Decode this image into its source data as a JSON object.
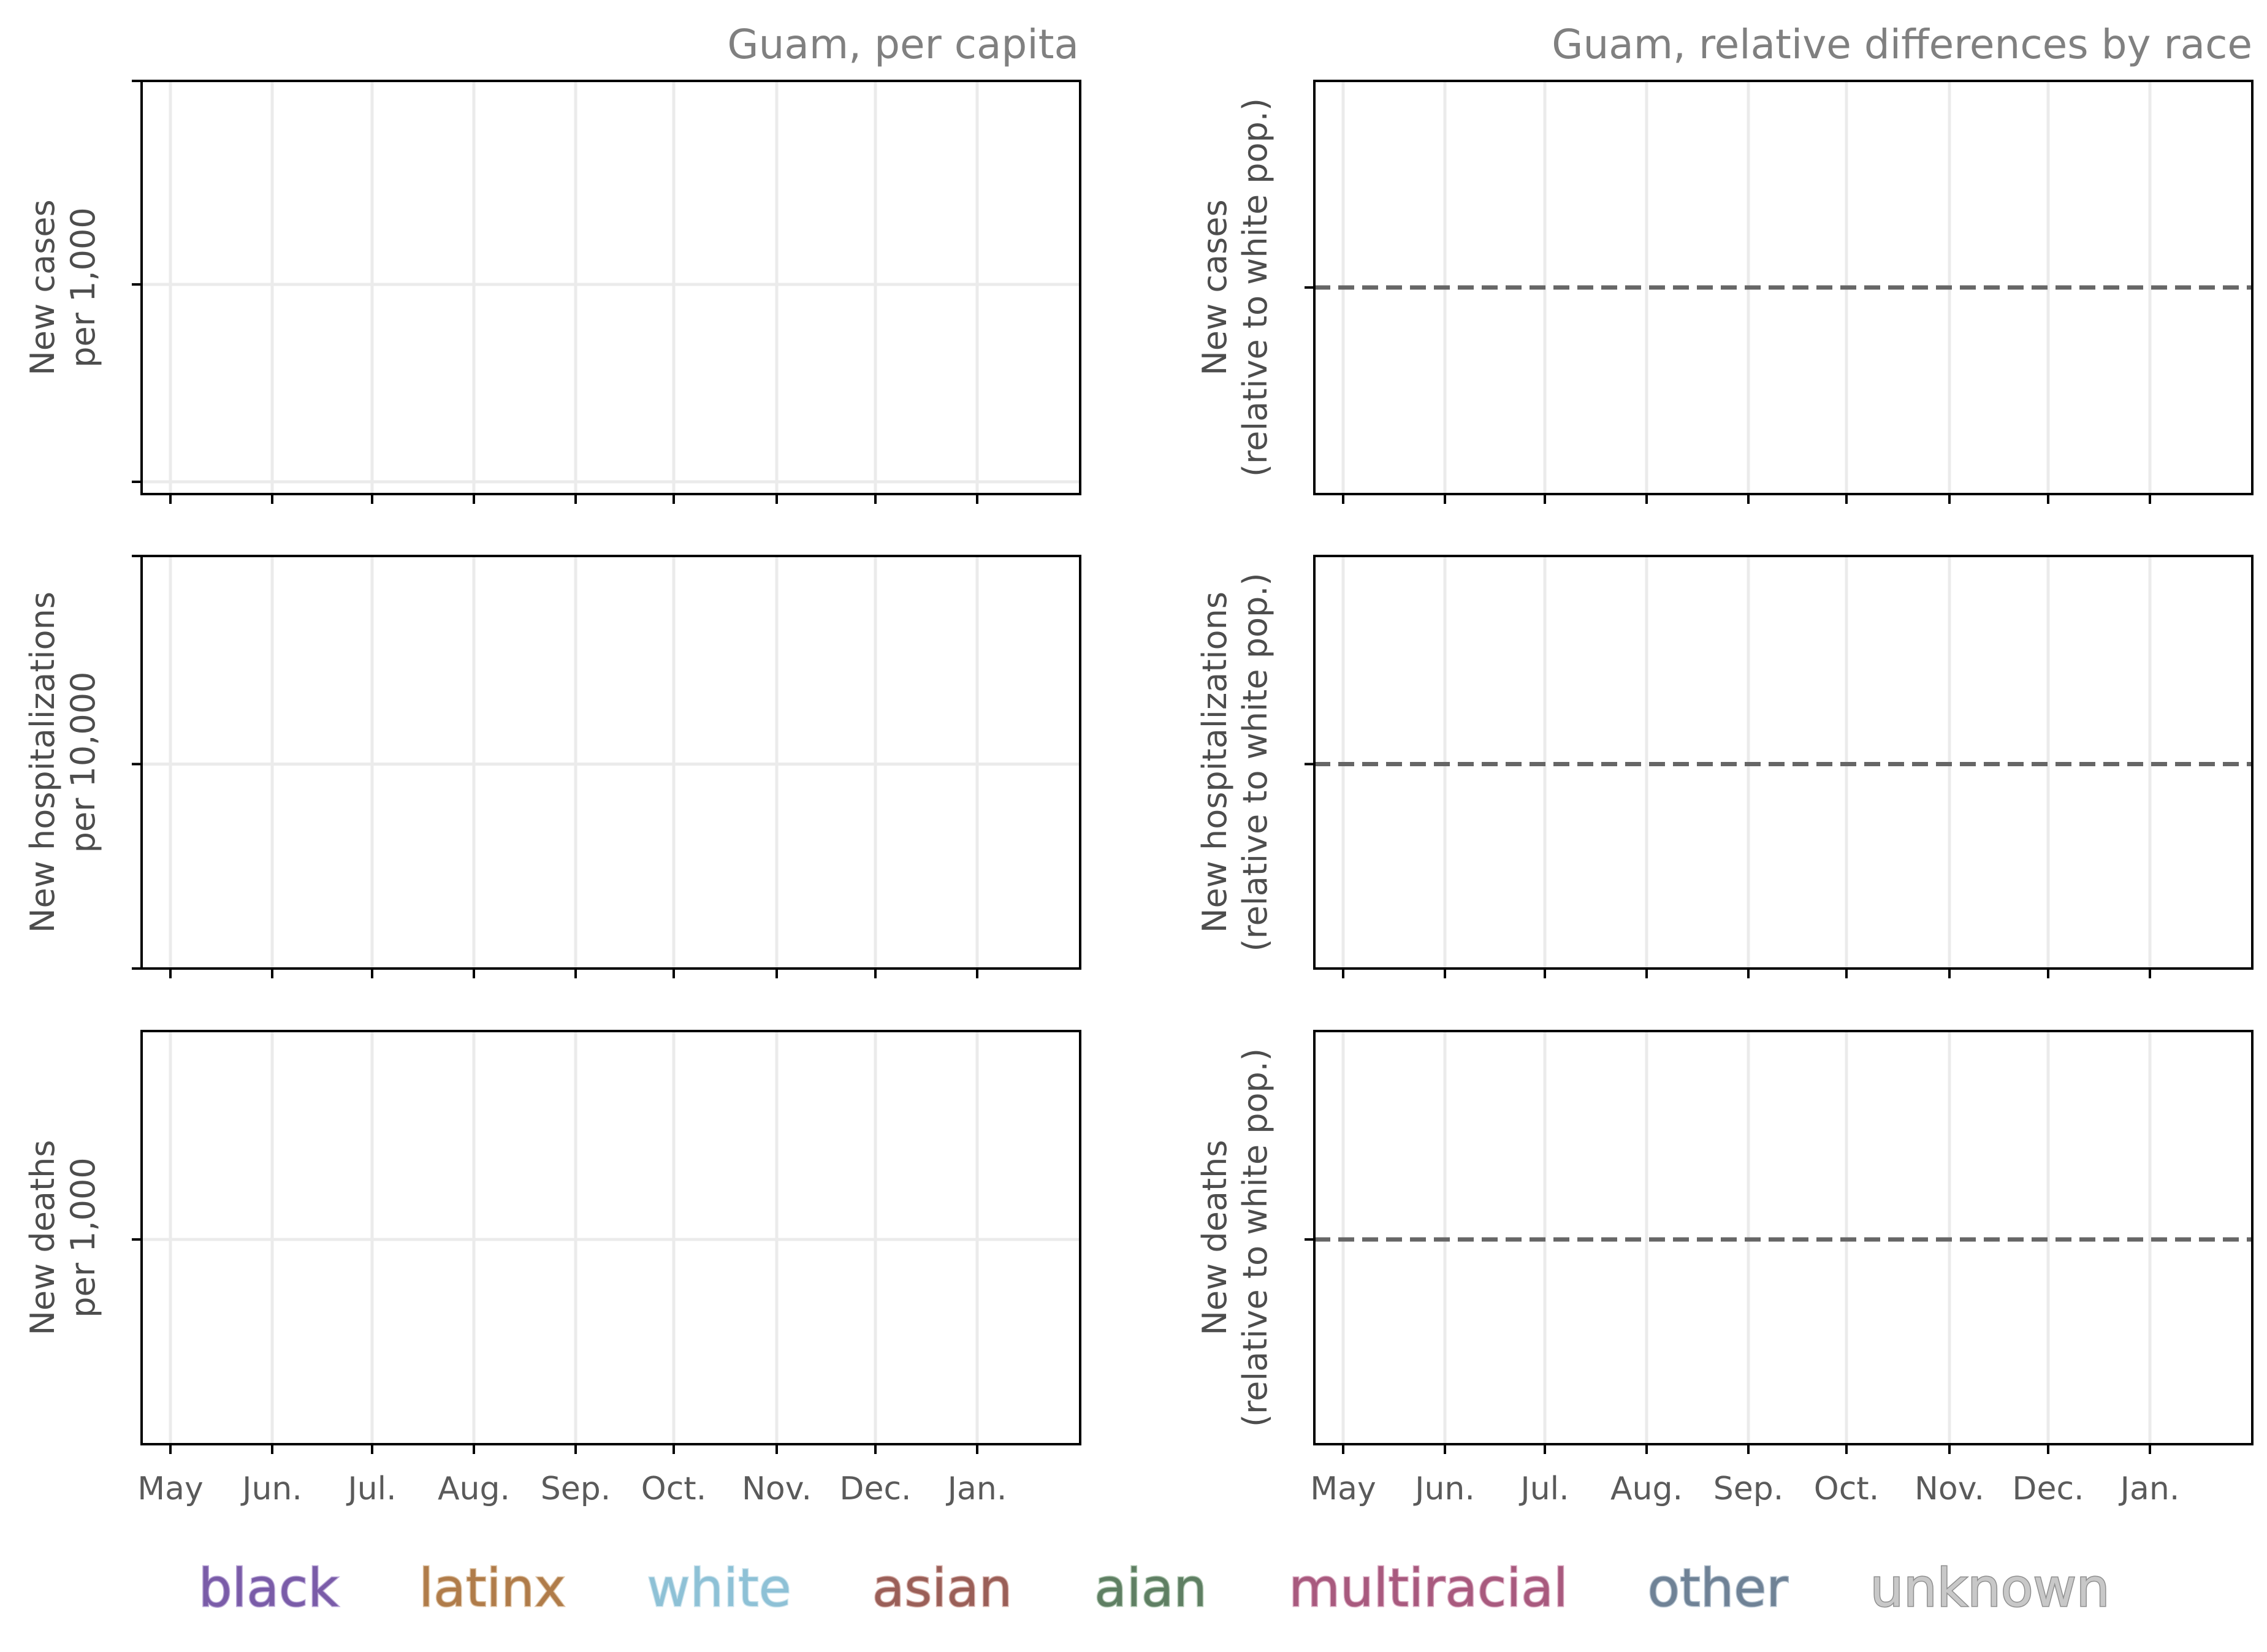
{
  "chart_data": [
    {
      "type": "line",
      "title": "Guam, per capita",
      "panels": [
        {
          "ylabel": [
            "New cases",
            "per 1,000"
          ],
          "series": []
        },
        {
          "ylabel": [
            "New hospitalizations",
            "per 10,000"
          ],
          "series": []
        },
        {
          "ylabel": [
            "New deaths",
            "per 1,000"
          ],
          "series": []
        }
      ]
    },
    {
      "type": "line",
      "title": "Guam, relative differences by race",
      "reference_line": {
        "style": "dashed",
        "color": "#666666"
      },
      "panels": [
        {
          "ylabel": [
            "New cases",
            "(relative to white pop.)"
          ],
          "series": []
        },
        {
          "ylabel": [
            "New hospitalizations",
            "(relative to white pop.)"
          ],
          "series": []
        },
        {
          "ylabel": [
            "New deaths",
            "(relative to white pop.)"
          ],
          "series": []
        }
      ]
    }
  ],
  "xticks": [
    "May",
    "Jun.",
    "Jul.",
    "Aug.",
    "Sep.",
    "Oct.",
    "Nov.",
    "Dec.",
    "Jan."
  ],
  "grid": true,
  "legend": {
    "placement": "bottom",
    "entries": [
      {
        "label": "black",
        "color": "#7a5ca8",
        "stroke": "#b9a6d6"
      },
      {
        "label": "latinx",
        "color": "#b07c4a",
        "stroke": "#dcc0a0"
      },
      {
        "label": "white",
        "color": "#8ec1d6",
        "stroke": "#c8e2ec"
      },
      {
        "label": "asian",
        "color": "#9a5f58",
        "stroke": "#d4aca6"
      },
      {
        "label": "aian",
        "color": "#5f7f63",
        "stroke": "#a9c2ab"
      },
      {
        "label": "multiracial",
        "color": "#a85a7e",
        "stroke": "#d9a7bf"
      },
      {
        "label": "other",
        "color": "#6f8296",
        "stroke": "#b1bfcc"
      },
      {
        "label": "unknown",
        "color": "#c8c8c8",
        "stroke": "#8f8f8f"
      }
    ]
  }
}
